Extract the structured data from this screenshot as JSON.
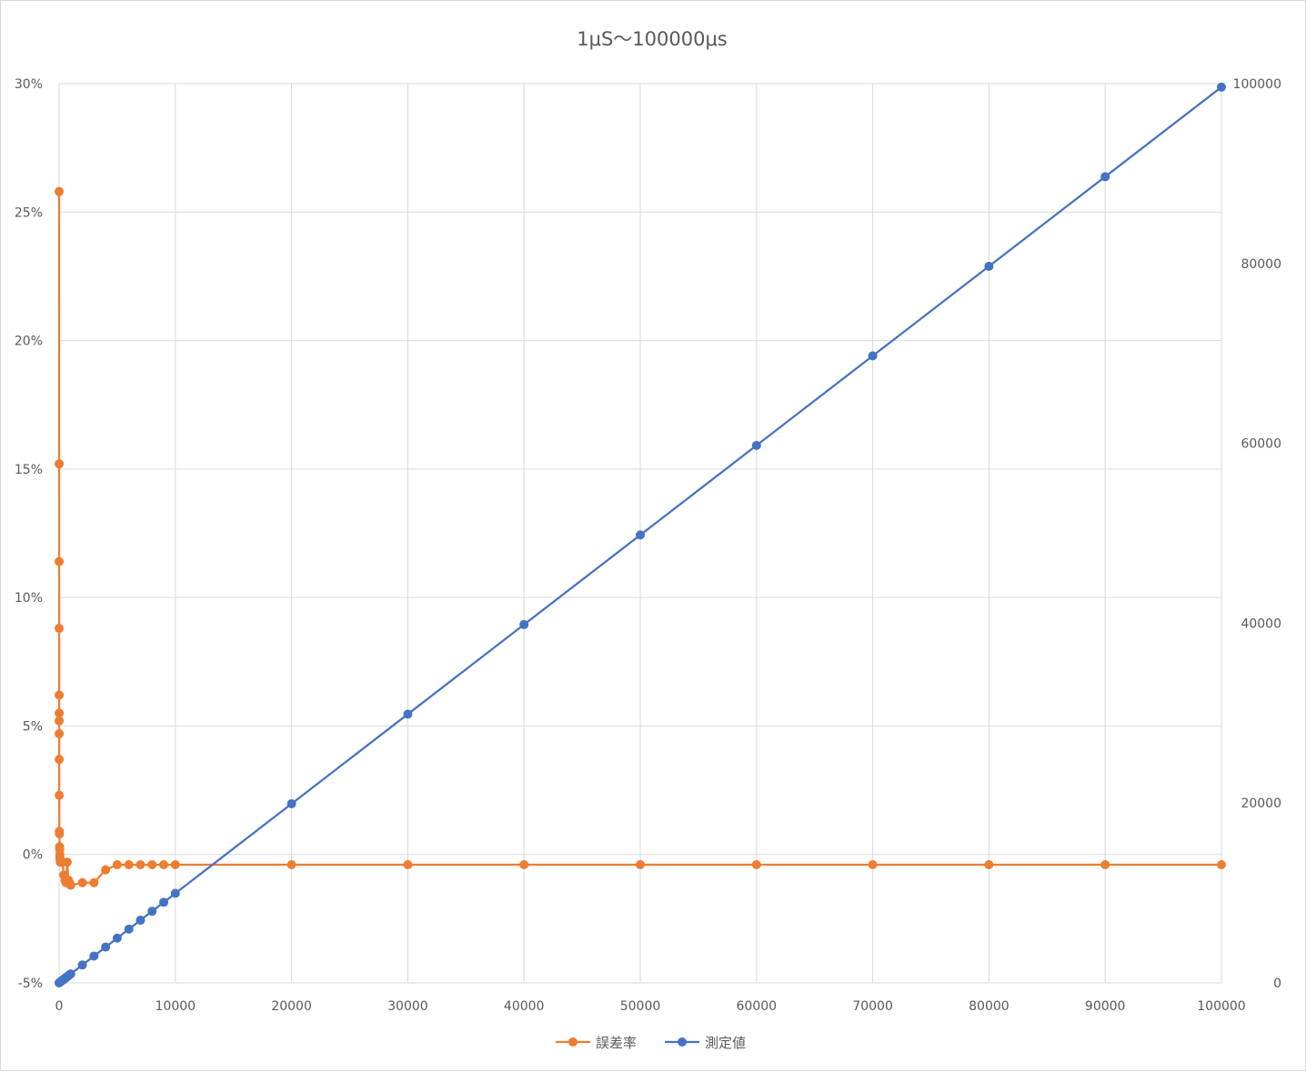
{
  "chart_data": {
    "type": "line",
    "title": "1μS～100000μs",
    "x_ticks": [
      "0",
      "10000",
      "20000",
      "30000",
      "40000",
      "50000",
      "60000",
      "70000",
      "80000",
      "90000",
      "100000"
    ],
    "xlim": [
      0,
      100000
    ],
    "y_left_ticks": [
      "30%",
      "25%",
      "20%",
      "15%",
      "10%",
      "5%",
      "0%",
      "-5%"
    ],
    "y_left_lim": [
      -0.05,
      0.3
    ],
    "y_right_ticks": [
      "100000",
      "80000",
      "60000",
      "40000",
      "20000",
      "0"
    ],
    "y_right_lim": [
      0,
      100000
    ],
    "grid": true,
    "legend_position": "bottom",
    "series": [
      {
        "name": "誤差率",
        "axis": "left",
        "color": "#ed7d31",
        "x": [
          1,
          2,
          3,
          4,
          5,
          6,
          7,
          8,
          9,
          10,
          20,
          30,
          40,
          50,
          60,
          70,
          80,
          90,
          100,
          200,
          300,
          400,
          500,
          600,
          700,
          800,
          900,
          1000,
          2000,
          3000,
          4000,
          5000,
          6000,
          7000,
          8000,
          9000,
          10000,
          20000,
          30000,
          40000,
          50000,
          60000,
          70000,
          80000,
          90000,
          100000
        ],
        "values": [
          0.258,
          0.152,
          0.114,
          0.088,
          0.062,
          0.055,
          0.052,
          0.047,
          0.037,
          0.023,
          0.009,
          0.008,
          0.003,
          0.002,
          0.0,
          -0.001,
          -0.002,
          -0.002,
          -0.003,
          -0.003,
          -0.003,
          -0.008,
          -0.01,
          -0.011,
          -0.003,
          -0.01,
          -0.011,
          -0.012,
          -0.011,
          -0.011,
          -0.006,
          -0.004,
          -0.004,
          -0.004,
          -0.004,
          -0.004,
          -0.004,
          -0.004,
          -0.004,
          -0.004,
          -0.004,
          -0.004,
          -0.004,
          -0.004,
          -0.004,
          -0.004
        ]
      },
      {
        "name": "測定値",
        "axis": "right",
        "color": "#4472c4",
        "x": [
          1,
          10,
          50,
          100,
          200,
          300,
          400,
          500,
          600,
          700,
          800,
          900,
          1000,
          2000,
          3000,
          4000,
          5000,
          6000,
          7000,
          8000,
          9000,
          10000,
          20000,
          30000,
          40000,
          50000,
          60000,
          70000,
          80000,
          90000,
          100000
        ],
        "values": [
          1,
          10,
          50,
          100,
          200,
          300,
          400,
          500,
          598,
          697,
          797,
          896,
          996,
          1992,
          2989,
          3985,
          4981,
          5977,
          6973,
          7969,
          8965,
          9962,
          19923,
          29885,
          39846,
          49808,
          59769,
          69731,
          79692,
          89654,
          99615
        ]
      }
    ]
  }
}
